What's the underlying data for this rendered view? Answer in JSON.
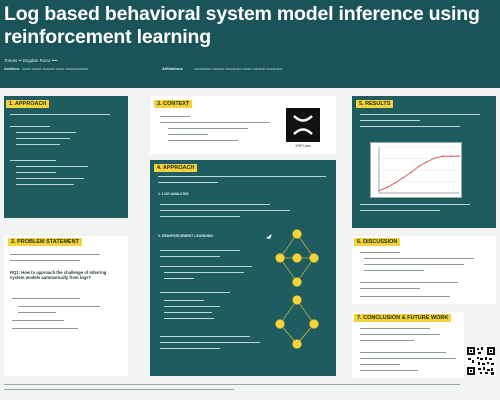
{
  "header": {
    "title": "Log based behavioral system model inference using reinforcement learning",
    "authors": "Tomas ••  Bogdan Rusu ••••",
    "affil_left_label": "Authors",
    "affil_left_text": "•••••• ••••••• ••••••••• •••••• ••••••••••••••••",
    "affil_right_label": "Affiliations",
    "affil_right_text": "•••••••••••• ••••••••• ••••••••••• ••••••• ••••••••• •••••••••••"
  },
  "panels": {
    "approach": {
      "title": "1. APPROACH"
    },
    "problem": {
      "title": "2. PROBLEM STATEMENT"
    },
    "context": {
      "title": "3. CONTEXT"
    },
    "method": {
      "title": "4. APPROACH"
    },
    "results": {
      "title": "5. RESULTS"
    },
    "discussion": {
      "title": "6. DISCUSSION"
    },
    "conclusion": {
      "title": "7. CONCLUSION & FUTURE WORK"
    }
  },
  "problem": {
    "question": "RQ1: How to approach the challenge of inferring system models automatically from logs?"
  },
  "logo": {
    "caption": "XRP Labs"
  },
  "method": {
    "section_a": "1. LOG ANALYSIS",
    "section_b": "2. REINFORCEMENT LEARNING"
  },
  "colors": {
    "header_bg": "#1b5458",
    "panel_dark": "#1e5c60",
    "accent_yellow": "#f4d23a",
    "body_bg": "#f2f4f4",
    "chart_line": "#d04040"
  },
  "chart_data": {
    "type": "line",
    "title": "",
    "xlabel": "",
    "ylabel": "",
    "xlim": [
      0,
      10
    ],
    "ylim": [
      0,
      1
    ],
    "grid": true,
    "series": [
      {
        "x": [
          0,
          1,
          2,
          3,
          4,
          5,
          6,
          7,
          8,
          9,
          10
        ],
        "y": [
          0.05,
          0.12,
          0.22,
          0.33,
          0.45,
          0.58,
          0.68,
          0.76,
          0.8,
          0.8,
          0.8
        ]
      }
    ]
  }
}
